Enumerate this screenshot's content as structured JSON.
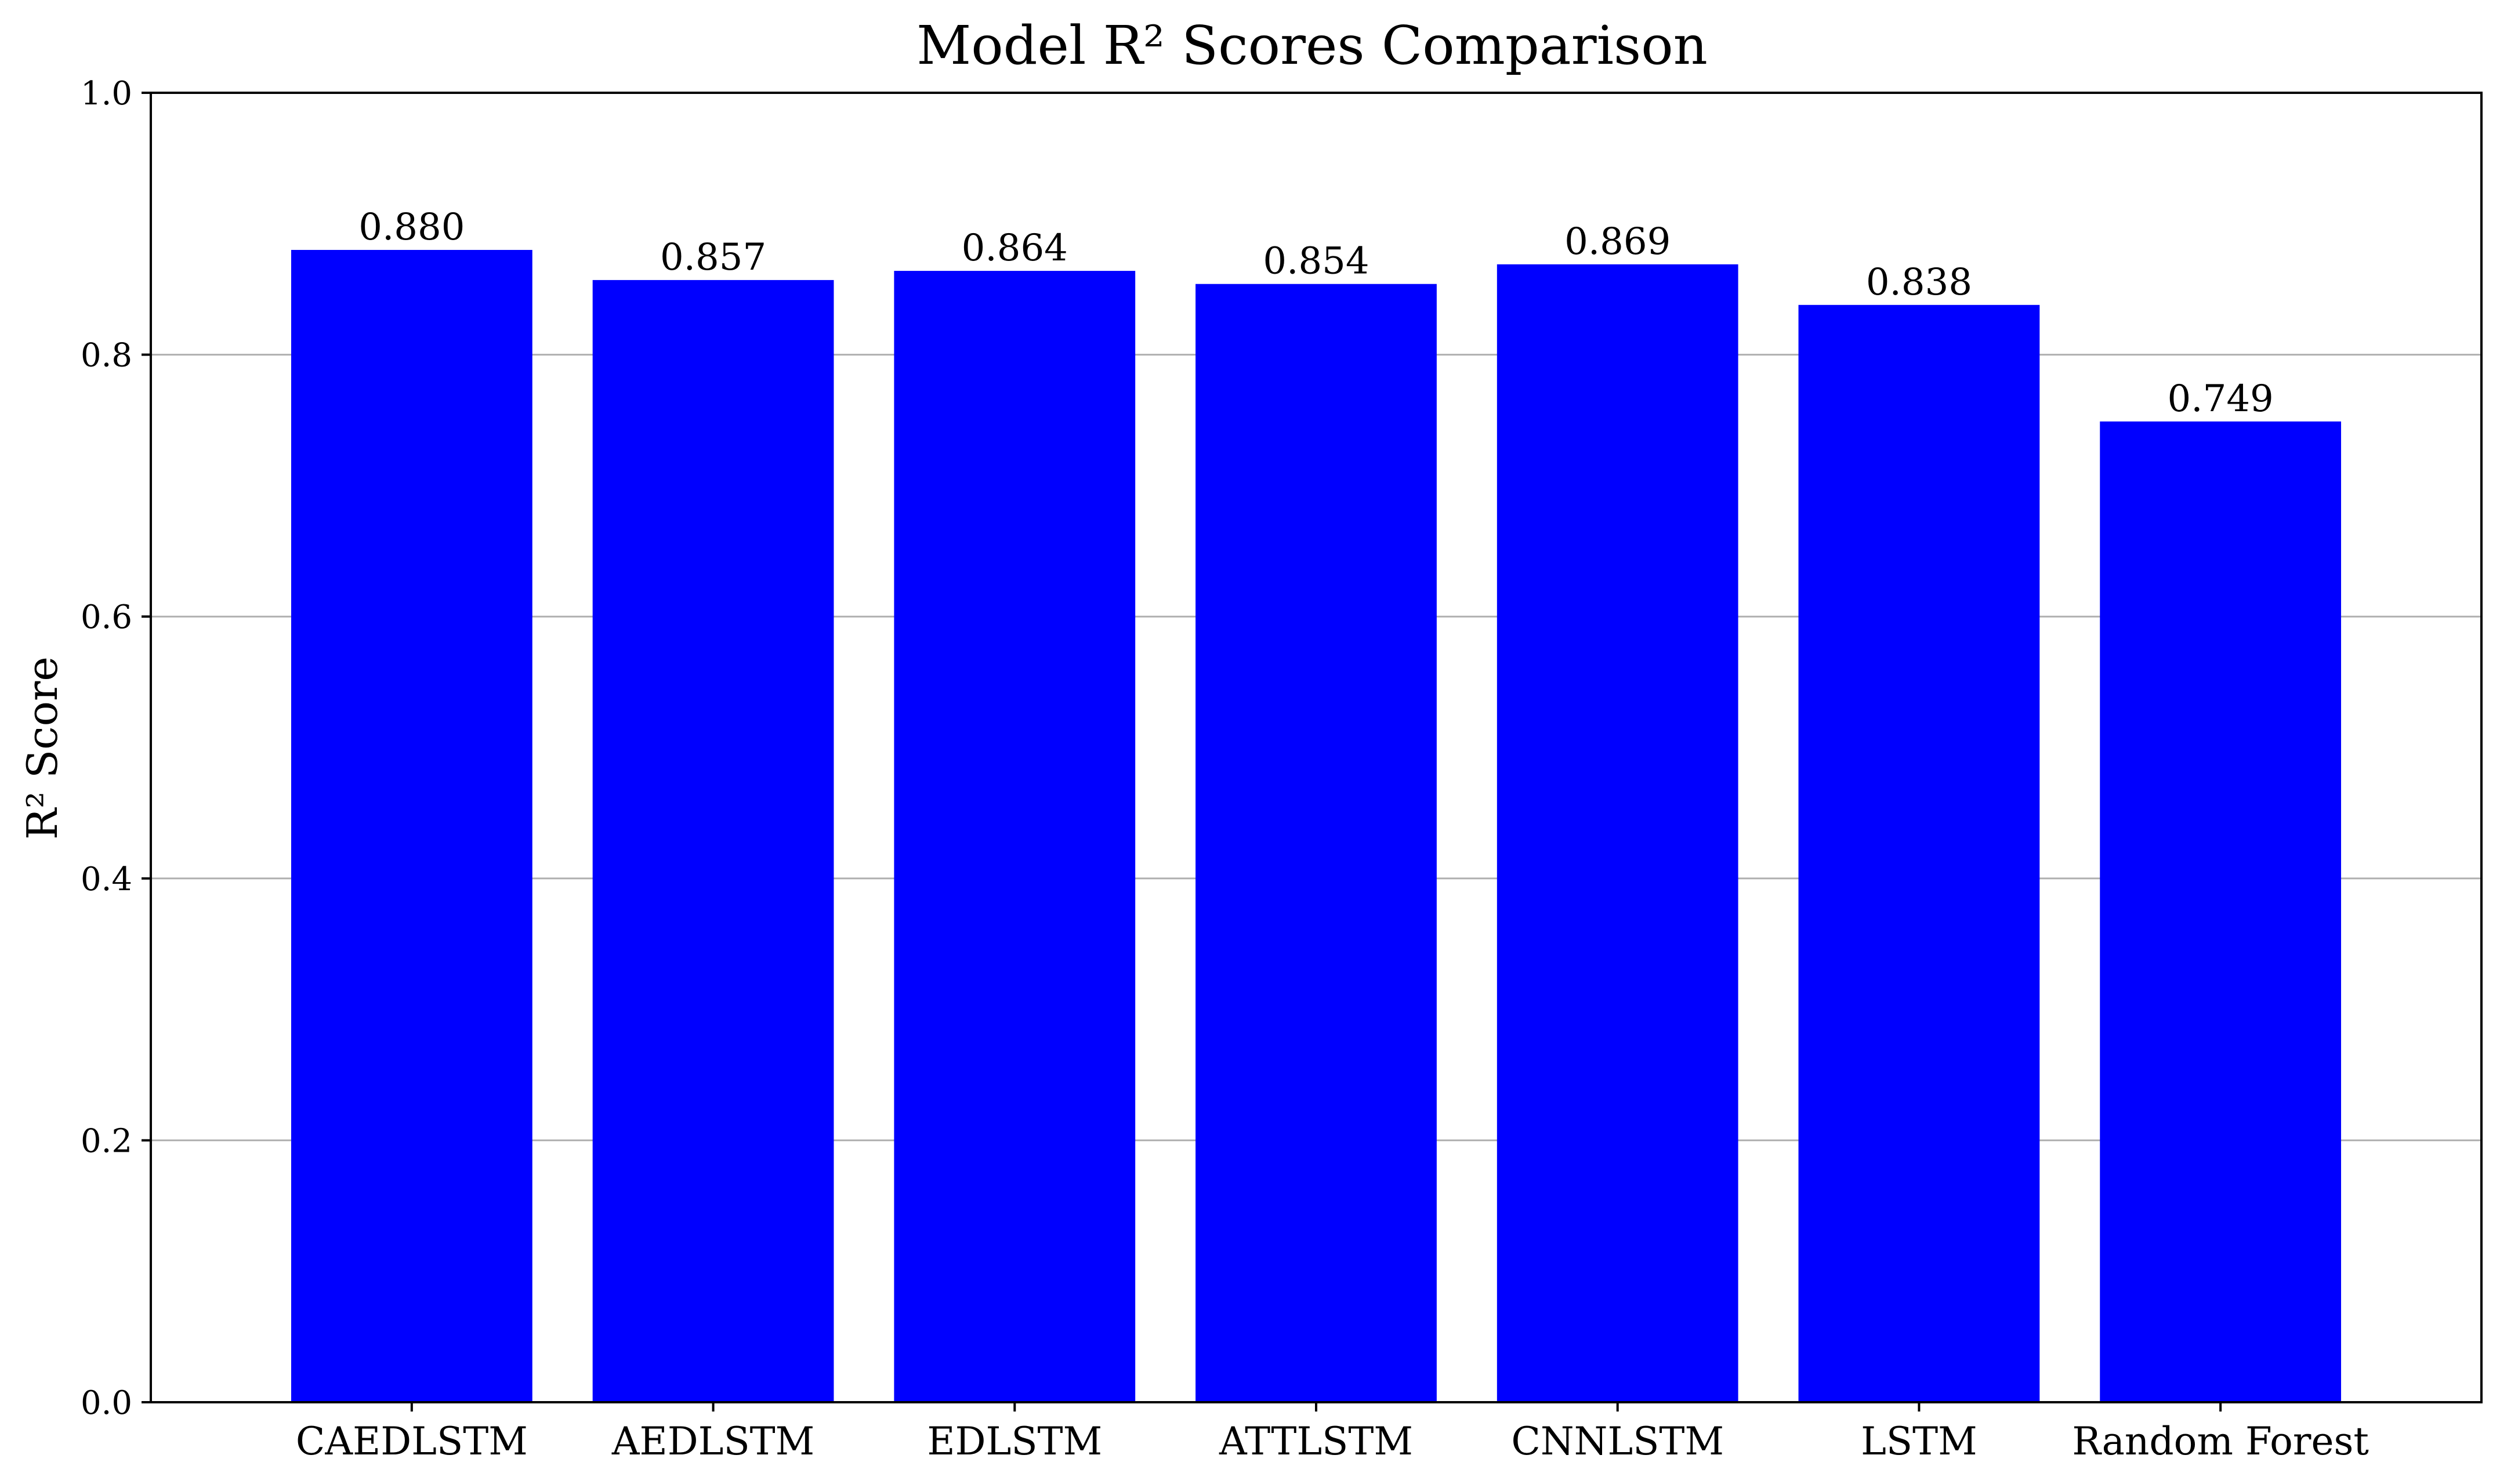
{
  "chart_data": {
    "type": "bar",
    "title": "Model R² Scores Comparison",
    "xlabel": "",
    "ylabel": "R² Score",
    "categories": [
      "CAEDLSTM",
      "AEDLSTM",
      "EDLSTM",
      "ATTLSTM",
      "CNNLSTM",
      "LSTM",
      "Random Forest"
    ],
    "values": [
      0.88,
      0.857,
      0.864,
      0.854,
      0.869,
      0.838,
      0.749
    ],
    "value_labels": [
      "0.880",
      "0.857",
      "0.864",
      "0.854",
      "0.869",
      "0.838",
      "0.749"
    ],
    "ylim": [
      0,
      1.0
    ],
    "yticks": [
      "0.0",
      "0.2",
      "0.4",
      "0.6",
      "0.8",
      "1.0"
    ],
    "grid": "horizontal",
    "bar_color": "#0000ff",
    "grid_color": "#b0b0b0"
  }
}
